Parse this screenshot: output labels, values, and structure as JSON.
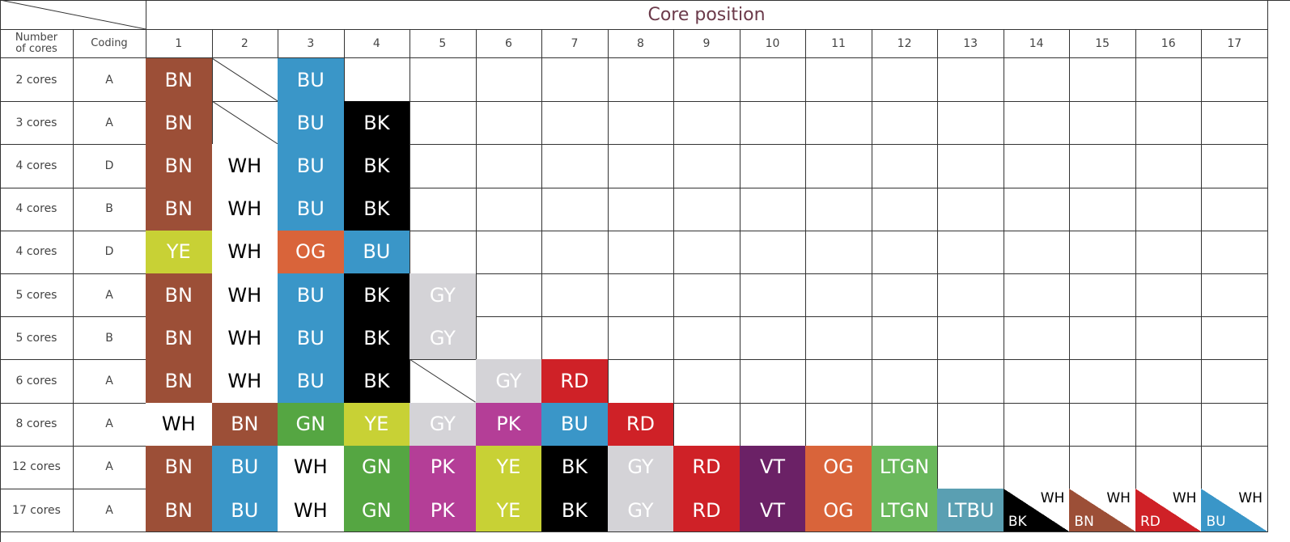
{
  "header": {
    "title": "Core position",
    "row_label": "Number of cores",
    "coding_label": "Coding",
    "columns": [
      1,
      2,
      3,
      4,
      5,
      6,
      7,
      8,
      9,
      10,
      11,
      12,
      13,
      14,
      15,
      16,
      17
    ]
  },
  "palette": {
    "BN": {
      "fill": "#9c4f37",
      "text": "#ffffff"
    },
    "BU": {
      "fill": "#3a96c8",
      "text": "#ffffff"
    },
    "BK": {
      "fill": "#000000",
      "text": "#ffffff"
    },
    "WH": {
      "fill": "#ffffff",
      "text": "#000000"
    },
    "YE": {
      "fill": "#c8d135",
      "text": "#ffffff"
    },
    "OG": {
      "fill": "#d9643a",
      "text": "#ffffff"
    },
    "GY": {
      "fill": "#d4d3d7",
      "text": "#ffffff"
    },
    "RD": {
      "fill": "#cf2127",
      "text": "#ffffff"
    },
    "GN": {
      "fill": "#55a642",
      "text": "#ffffff"
    },
    "PK": {
      "fill": "#b43e97",
      "text": "#ffffff"
    },
    "VT": {
      "fill": "#6b2166",
      "text": "#ffffff"
    },
    "LTGN": {
      "fill": "#6ab85c",
      "text": "#ffffff"
    },
    "LTBU": {
      "fill": "#5a9fb2",
      "text": "#ffffff"
    }
  },
  "table": {
    "rows": [
      {
        "cores": "2 cores",
        "coding": "A",
        "cells": [
          "BN",
          {
            "struck": true
          },
          "BU"
        ]
      },
      {
        "cores": "3 cores",
        "coding": "A",
        "cells": [
          "BN",
          {
            "struck": true
          },
          "BU",
          "BK"
        ]
      },
      {
        "cores": "4 cores",
        "coding": "D",
        "cells": [
          "BN",
          "WH",
          "BU",
          "BK"
        ]
      },
      {
        "cores": "4 cores",
        "coding": "B",
        "cells": [
          "BN",
          "WH",
          "BU",
          "BK"
        ]
      },
      {
        "cores": "4 cores",
        "coding": "D",
        "cells": [
          "YE",
          "WH",
          "OG",
          "BU"
        ]
      },
      {
        "cores": "5 cores",
        "coding": "A",
        "cells": [
          "BN",
          "WH",
          "BU",
          "BK",
          "GY"
        ]
      },
      {
        "cores": "5 cores",
        "coding": "B",
        "cells": [
          "BN",
          "WH",
          "BU",
          "BK",
          "GY"
        ]
      },
      {
        "cores": "6 cores",
        "coding": "A",
        "cells": [
          "BN",
          "WH",
          "BU",
          "BK",
          {
            "struck": true
          },
          "GY",
          "RD"
        ]
      },
      {
        "cores": "8 cores",
        "coding": "A",
        "cells": [
          "WH",
          "BN",
          "GN",
          "YE",
          "GY",
          "PK",
          "BU",
          "RD"
        ]
      },
      {
        "cores": "12 cores",
        "coding": "A",
        "cells": [
          "BN",
          "BU",
          "WH",
          "GN",
          "PK",
          "YE",
          "BK",
          "GY",
          "RD",
          "VT",
          "OG",
          "LTGN"
        ]
      },
      {
        "cores": "17 cores",
        "coding": "A",
        "cells": [
          "BN",
          "BU",
          "WH",
          "GN",
          "PK",
          "YE",
          "BK",
          "GY",
          "RD",
          "VT",
          "OG",
          "LTGN",
          "LTBU",
          {
            "top": "WH",
            "bottom": "BK"
          },
          {
            "top": "WH",
            "bottom": "BN"
          },
          {
            "top": "WH",
            "bottom": "RD"
          },
          {
            "top": "WH",
            "bottom": "BU"
          }
        ]
      }
    ]
  }
}
